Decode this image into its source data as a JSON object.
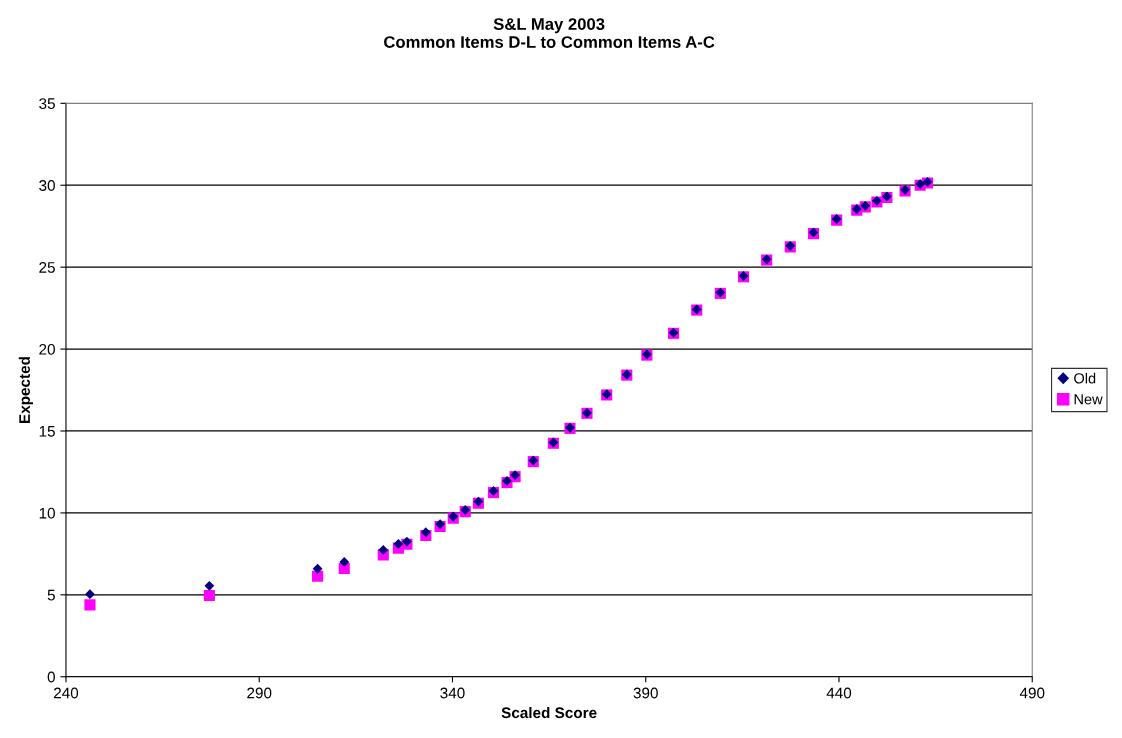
{
  "chart_data": {
    "type": "scatter",
    "title": "S&L May 2003\nCommon Items D-L to Common Items A-C",
    "xlabel": "Scaled Score",
    "ylabel": "Expected",
    "xlim": [
      240,
      490
    ],
    "xticks": [
      240,
      290,
      340,
      390,
      440,
      490
    ],
    "ylim": [
      0,
      35
    ],
    "yticks": [
      0,
      5,
      10,
      15,
      20,
      25,
      30,
      35
    ],
    "grid": "y",
    "legend": "right",
    "series": [
      {
        "name": "Old",
        "color": "#000080",
        "marker": "diamond",
        "x": [
          246.2,
          277.1,
          305.1,
          312.0,
          322.1,
          326.0,
          328.2,
          333.1,
          336.8,
          340.2,
          343.3,
          346.7,
          350.6,
          354.1,
          356.2,
          360.9,
          366.1,
          370.4,
          374.8,
          379.9,
          385.1,
          390.3,
          397.2,
          403.2,
          409.3,
          415.3,
          421.3,
          427.4,
          433.4,
          439.4,
          444.6,
          446.8,
          449.8,
          452.4,
          457.1,
          461.0,
          462.9
        ],
        "values": [
          5.04,
          5.55,
          6.59,
          7.01,
          7.74,
          8.11,
          8.25,
          8.82,
          9.32,
          9.78,
          10.18,
          10.69,
          11.34,
          11.95,
          12.31,
          13.2,
          14.3,
          15.2,
          16.1,
          17.25,
          18.45,
          19.68,
          21.0,
          22.42,
          23.45,
          24.46,
          25.48,
          26.3,
          27.12,
          27.94,
          28.55,
          28.75,
          29.05,
          29.32,
          29.72,
          30.07,
          30.21
        ]
      },
      {
        "name": "New",
        "color": "#ff00ff",
        "marker": "square",
        "x": [
          246.2,
          277.1,
          305.1,
          312.0,
          322.1,
          326.0,
          328.2,
          333.1,
          336.8,
          340.2,
          343.3,
          346.7,
          350.6,
          354.1,
          356.2,
          360.9,
          366.1,
          370.4,
          374.8,
          379.9,
          385.1,
          390.3,
          397.2,
          403.2,
          409.3,
          415.3,
          421.3,
          427.4,
          433.4,
          439.4,
          444.6,
          446.8,
          449.8,
          452.4,
          457.1,
          461.0,
          462.9
        ],
        "values": [
          4.39,
          4.96,
          6.13,
          6.61,
          7.44,
          7.85,
          8.09,
          8.62,
          9.17,
          9.68,
          10.08,
          10.59,
          11.24,
          11.85,
          12.21,
          13.13,
          14.25,
          15.16,
          16.08,
          17.2,
          18.41,
          19.63,
          20.96,
          22.38,
          23.4,
          24.41,
          25.43,
          26.24,
          27.05,
          27.87,
          28.48,
          28.68,
          28.98,
          29.25,
          29.65,
          30.0,
          30.14
        ]
      }
    ]
  }
}
